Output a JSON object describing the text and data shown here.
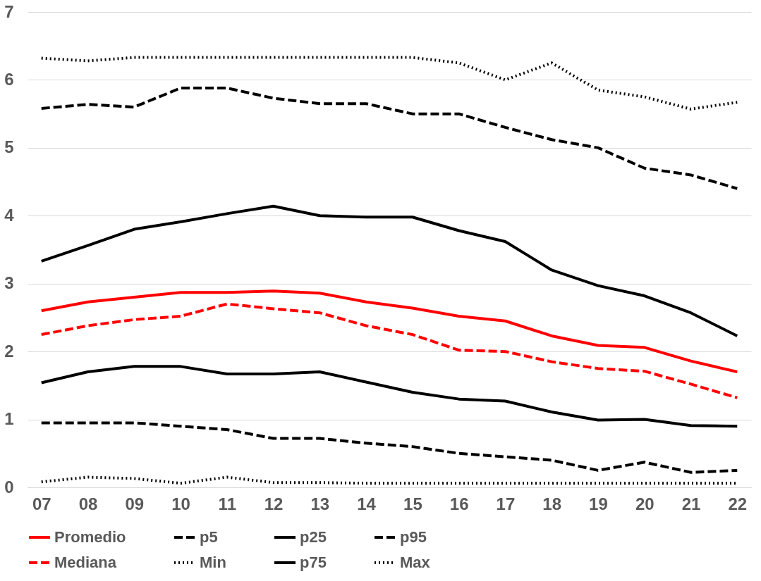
{
  "chart_data": {
    "type": "line",
    "categories": [
      "07",
      "08",
      "09",
      "10",
      "11",
      "12",
      "13",
      "14",
      "15",
      "16",
      "17",
      "18",
      "19",
      "20",
      "21",
      "22"
    ],
    "ylim": [
      0,
      7
    ],
    "yticks": [
      0,
      1,
      2,
      3,
      4,
      5,
      6,
      7
    ],
    "grid": "y",
    "legend": "bottom",
    "series": [
      {
        "name": "Promedio",
        "color": "#ff0000",
        "line_style": "solid",
        "values": [
          2.6,
          2.73,
          2.8,
          2.87,
          2.87,
          2.89,
          2.86,
          2.73,
          2.64,
          2.52,
          2.45,
          2.23,
          2.09,
          2.06,
          1.86,
          1.7
        ]
      },
      {
        "name": "p5",
        "color": "#000000",
        "line_style": "dashed",
        "values": [
          0.95,
          0.95,
          0.95,
          0.9,
          0.85,
          0.72,
          0.72,
          0.65,
          0.6,
          0.5,
          0.45,
          0.4,
          0.25,
          0.37,
          0.22,
          0.25
        ]
      },
      {
        "name": "p25",
        "color": "#000000",
        "line_style": "solid",
        "values": [
          1.54,
          1.7,
          1.78,
          1.78,
          1.67,
          1.67,
          1.7,
          1.55,
          1.4,
          1.3,
          1.27,
          1.11,
          0.99,
          1.0,
          0.91,
          0.9
        ]
      },
      {
        "name": "p95",
        "color": "#000000",
        "line_style": "dashed",
        "values": [
          5.58,
          5.64,
          5.6,
          5.88,
          5.88,
          5.73,
          5.65,
          5.65,
          5.5,
          5.5,
          5.3,
          5.12,
          5.0,
          4.7,
          4.6,
          4.4
        ]
      },
      {
        "name": "Mediana",
        "color": "#ff0000",
        "line_style": "dashed",
        "values": [
          2.25,
          2.38,
          2.47,
          2.52,
          2.7,
          2.63,
          2.57,
          2.38,
          2.25,
          2.02,
          2.0,
          1.85,
          1.75,
          1.71,
          1.52,
          1.32
        ]
      },
      {
        "name": "Min",
        "color": "#000000",
        "line_style": "dotted",
        "values": [
          0.08,
          0.15,
          0.13,
          0.06,
          0.15,
          0.07,
          0.07,
          0.06,
          0.06,
          0.06,
          0.06,
          0.06,
          0.06,
          0.06,
          0.06,
          0.06
        ]
      },
      {
        "name": "p75",
        "color": "#000000",
        "line_style": "solid",
        "values": [
          3.33,
          3.56,
          3.8,
          3.91,
          4.03,
          4.14,
          4.0,
          3.98,
          3.98,
          3.78,
          3.62,
          3.2,
          2.97,
          2.82,
          2.57,
          2.23
        ]
      },
      {
        "name": "Max",
        "color": "#000000",
        "line_style": "dotted",
        "values": [
          6.32,
          6.28,
          6.33,
          6.33,
          6.33,
          6.33,
          6.33,
          6.33,
          6.33,
          6.25,
          6.0,
          6.25,
          5.85,
          5.75,
          5.57,
          5.67
        ]
      }
    ]
  }
}
